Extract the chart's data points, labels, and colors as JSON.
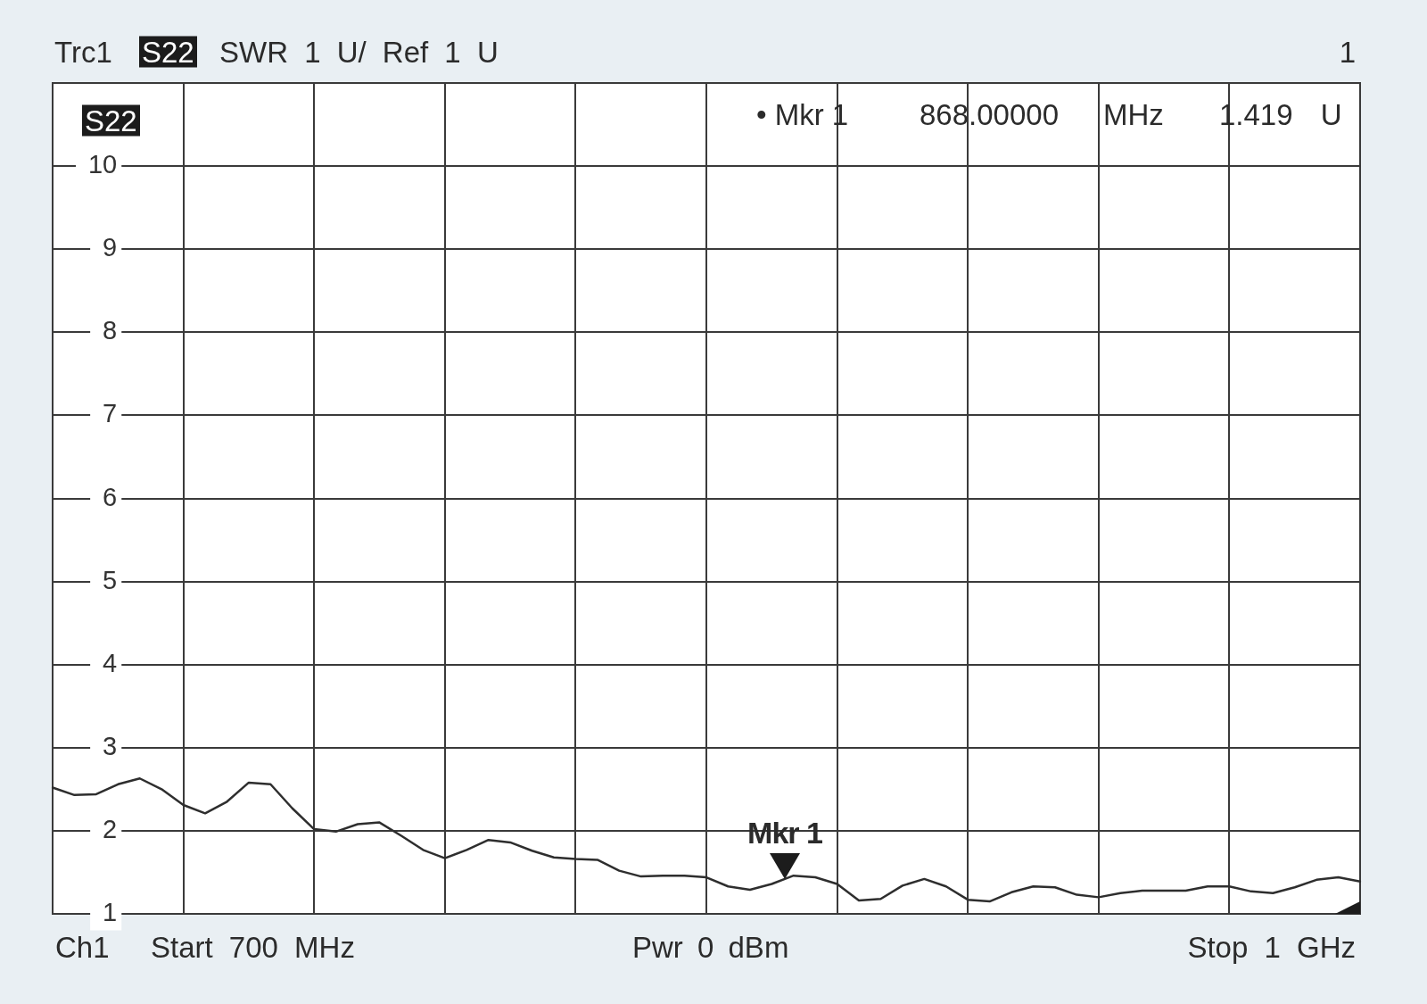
{
  "chart_data": {
    "type": "line",
    "annotations": [
      "Trc1",
      "S22",
      "SWR 1 U/ Ref 1 U",
      "1",
      "S22",
      "• Mkr 1",
      "868.00000",
      "MHz",
      "1.419 U",
      "Mkr 1",
      "Ch1",
      "Start 700 MHz",
      "Pwr 0 dBm",
      "Stop 1 GHz"
    ],
    "categories": [
      null,
      null,
      null,
      null,
      null,
      null,
      null,
      null,
      null,
      null,
      null,
      null,
      null,
      null,
      null,
      null,
      null,
      null,
      null,
      null,
      null,
      null,
      null,
      null,
      null,
      null,
      null,
      null,
      null,
      null,
      null,
      null,
      null,
      null,
      null,
      null,
      null,
      null,
      null,
      null,
      null,
      null,
      null,
      null,
      null,
      null,
      null,
      null,
      null,
      null,
      null,
      null,
      null,
      null,
      null,
      null,
      null,
      null,
      null,
      null,
      null
    ],
    "values": [
      2.52,
      2.43,
      2.44,
      2.56,
      2.63,
      2.5,
      2.31,
      2.21,
      2.35,
      2.58,
      2.56,
      2.27,
      2.02,
      1.99,
      2.08,
      2.1,
      1.94,
      1.77,
      1.67,
      1.77,
      1.89,
      1.86,
      1.76,
      1.68,
      1.66,
      1.65,
      1.52,
      1.45,
      1.46,
      1.46,
      1.44,
      1.33,
      1.29,
      1.36,
      1.46,
      1.44,
      1.36,
      1.16,
      1.18,
      1.34,
      1.42,
      1.33,
      1.17,
      1.15,
      1.26,
      1.33,
      1.32,
      1.23,
      1.2,
      1.25,
      1.28,
      1.28,
      1.28,
      1.33,
      1.33,
      1.27,
      1.25,
      1.32,
      1.41,
      1.44,
      1.39
    ],
    "color": "#2e2e2e",
    "ylim": [
      1,
      11
    ],
    "yticks": [
      1,
      2,
      3,
      4,
      5,
      6,
      7,
      8,
      9,
      10
    ],
    "tick_labels": "y",
    "grid": true,
    "marker": "none",
    "line_style": "solid"
  }
}
